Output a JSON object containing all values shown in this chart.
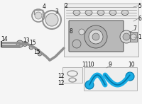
{
  "bg_color": "#f5f5f5",
  "gray": "#909090",
  "dark": "#505050",
  "blue": "#1aade4",
  "blue_dark": "#0077aa",
  "light_gray": "#d8d8d8",
  "med_gray": "#b8b8b8",
  "box_edge": "#aaaaaa",
  "box_fill": "#eeeeee",
  "figsize": [
    2.0,
    1.47
  ],
  "dpi": 100
}
